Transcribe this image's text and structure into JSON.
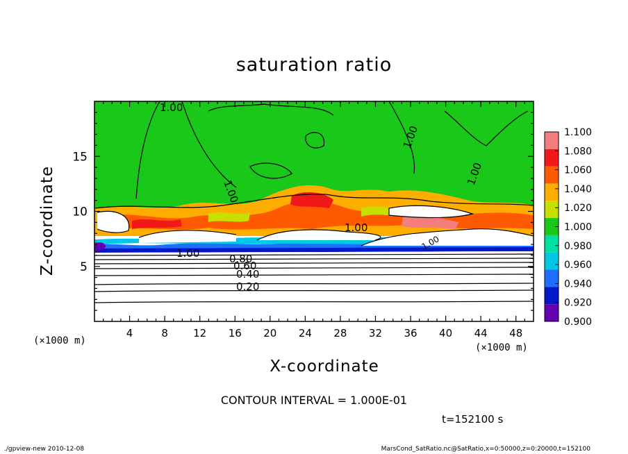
{
  "chart_data": {
    "type": "heatmap",
    "title": "saturation ratio",
    "xlabel": "X-coordinate",
    "ylabel": "Z-coordinate",
    "x_unit": "(×1000 m)",
    "z_unit": "(×1000 m)",
    "xlim": [
      0,
      50
    ],
    "ylim": [
      0,
      20
    ],
    "x_ticks": [
      "4",
      "8",
      "12",
      "16",
      "20",
      "24",
      "28",
      "32",
      "36",
      "40",
      "44",
      "48"
    ],
    "y_ticks": [
      "5",
      "10",
      "15"
    ],
    "colorbar": {
      "levels": [
        "1.100",
        "1.080",
        "1.060",
        "1.040",
        "1.020",
        "1.000",
        "0.980",
        "0.960",
        "0.940",
        "0.920",
        "0.900"
      ],
      "colors": [
        "#f47d7d",
        "#f01818",
        "#ff5a00",
        "#ffae00",
        "#c8e000",
        "#19c819",
        "#00e0a0",
        "#00c8e6",
        "#1e6eff",
        "#0018c8",
        "#6400b4"
      ]
    },
    "contour_labels": [
      "1.00",
      "1.00",
      "1.00",
      "1.00",
      "1.00",
      "1.00",
      "1.00",
      "0.80",
      "0.60",
      "0.40",
      "0.20"
    ],
    "contour_interval_text": "CONTOUR INTERVAL = 1.000E-01",
    "time_text": "t=152100 s"
  },
  "footer": {
    "left": "./gpview-new   2010-12-08",
    "right": "MarsCond_SatRatio.nc@SatRatio,x=0:50000,z=0:20000,t=152100"
  }
}
